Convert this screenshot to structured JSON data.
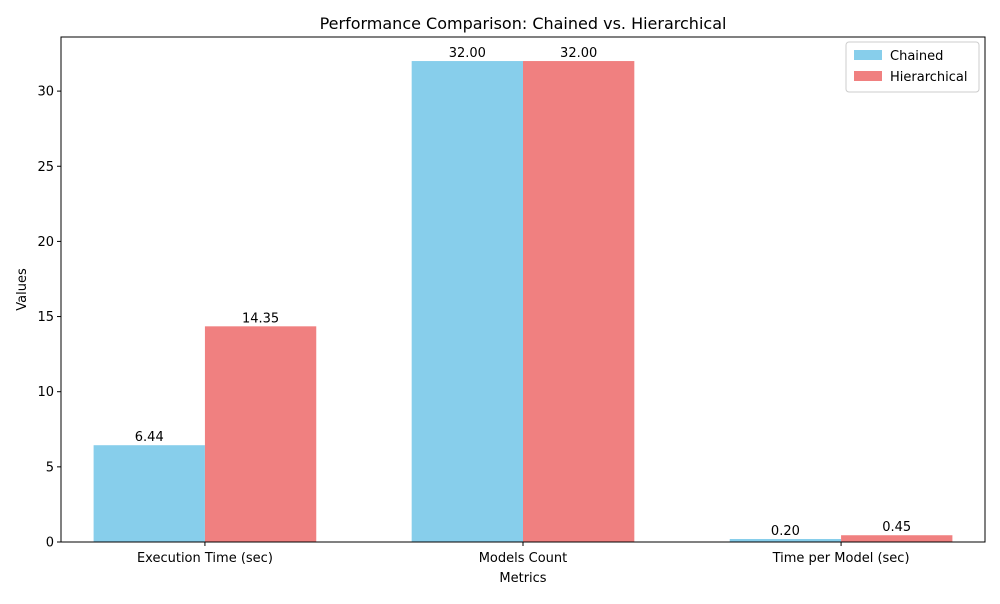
{
  "chart_data": {
    "type": "bar",
    "title": "Performance Comparison: Chained vs. Hierarchical",
    "xlabel": "Metrics",
    "ylabel": "Values",
    "categories": [
      "Execution Time (sec)",
      "Models Count",
      "Time per Model (sec)"
    ],
    "series": [
      {
        "name": "Chained",
        "values": [
          6.44,
          32.0,
          0.2
        ],
        "labels": [
          "6.44",
          "32.00",
          "0.20"
        ],
        "color": "#87CEEB"
      },
      {
        "name": "Hierarchical",
        "values": [
          14.35,
          32.0,
          0.45
        ],
        "labels": [
          "14.35",
          "32.00",
          "0.45"
        ],
        "color": "#F08080"
      }
    ],
    "yticks": [
      0,
      5,
      10,
      15,
      20,
      25,
      30
    ],
    "ylim": [
      0,
      33.6
    ],
    "grid": false,
    "legend_position": "top-right"
  }
}
